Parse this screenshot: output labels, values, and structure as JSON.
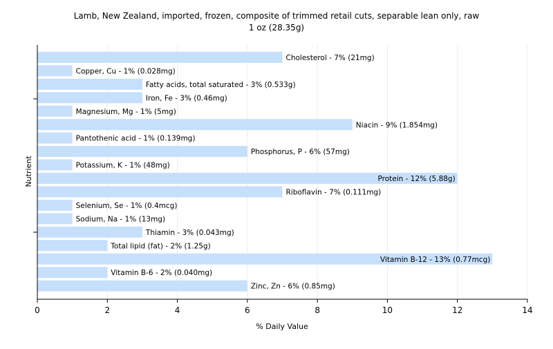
{
  "chart_data": {
    "type": "bar",
    "orientation": "horizontal",
    "title": "Lamb, New Zealand, imported, frozen, composite of trimmed retail cuts, separable lean only, raw",
    "subtitle": "1 oz (28.35g)",
    "xlabel": "% Daily Value",
    "ylabel": "Nutrient",
    "xlim": [
      0,
      14
    ],
    "xticks": [
      "0",
      "2",
      "4",
      "6",
      "8",
      "10",
      "12",
      "14"
    ],
    "grid": true,
    "bar_color": "#c6dffb",
    "categories": [
      "Cholesterol",
      "Copper, Cu",
      "Fatty acids, total saturated",
      "Iron, Fe",
      "Magnesium, Mg",
      "Niacin",
      "Pantothenic acid",
      "Phosphorus, P",
      "Potassium, K",
      "Protein",
      "Riboflavin",
      "Selenium, Se",
      "Sodium, Na",
      "Thiamin",
      "Total lipid (fat)",
      "Vitamin B-12",
      "Vitamin B-6",
      "Zinc, Zn"
    ],
    "values": [
      7,
      1,
      3,
      3,
      1,
      9,
      1,
      6,
      1,
      12,
      7,
      1,
      1,
      3,
      2,
      13,
      2,
      6
    ],
    "labels": [
      "Cholesterol - 7% (21mg)",
      "Copper, Cu - 1% (0.028mg)",
      "Fatty acids, total saturated - 3% (0.533g)",
      "Iron, Fe - 3% (0.46mg)",
      "Magnesium, Mg - 1% (5mg)",
      "Niacin - 9% (1.854mg)",
      "Pantothenic acid - 1% (0.139mg)",
      "Phosphorus, P - 6% (57mg)",
      "Potassium, K - 1% (48mg)",
      "Protein - 12% (5.88g)",
      "Riboflavin - 7% (0.111mg)",
      "Selenium, Se - 1% (0.4mcg)",
      "Sodium, Na - 1% (13mg)",
      "Thiamin - 3% (0.043mg)",
      "Total lipid (fat) - 2% (1.25g)",
      "Vitamin B-12 - 13% (0.77mcg)",
      "Vitamin B-6 - 2% (0.040mg)",
      "Zinc, Zn - 6% (0.85mg)"
    ]
  }
}
